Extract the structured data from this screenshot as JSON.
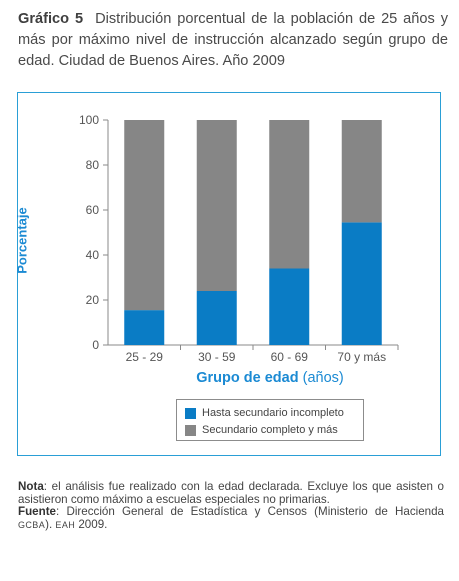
{
  "title": {
    "label": "Gráfico 5",
    "text": "Distribución porcentual de la población de 25 años y más por máximo nivel de instrucción alcanzado según grupo de edad. Ciudad de Buenos Aires. Año 2009"
  },
  "chart_data": {
    "type": "bar",
    "stacked": true,
    "categories": [
      "25 - 29",
      "30 - 59",
      "60 - 69",
      "70 y más"
    ],
    "series": [
      {
        "name": "Hasta secundario incompleto",
        "color": "#0a7cc5",
        "values": [
          15.5,
          24,
          34,
          54.5
        ]
      },
      {
        "name": "Secundario completo y más",
        "color": "#868686",
        "values": [
          84.5,
          76,
          66,
          45.5
        ]
      }
    ],
    "ylabel": "Porcentaje",
    "xlabel_main": "Grupo de edad",
    "xlabel_unit": "(años)",
    "ylim": [
      0,
      100
    ],
    "yticks": [
      0,
      20,
      40,
      60,
      80,
      100
    ],
    "grid": false,
    "legend_position": "bottom"
  },
  "notes": {
    "nota_label": "Nota",
    "nota_text": ": el análisis fue realizado con la edad declarada. Excluye los que asisten o asistieron como máximo a escuelas especiales no primarias.",
    "fuente_label": "Fuente",
    "fuente_text": ": Dirección General de Estadística y Censos (Ministerio de Hacienda ",
    "fuente_sc1": "GCBA",
    "fuente_mid": "). ",
    "fuente_sc2": "EAH",
    "fuente_end": " 2009."
  }
}
